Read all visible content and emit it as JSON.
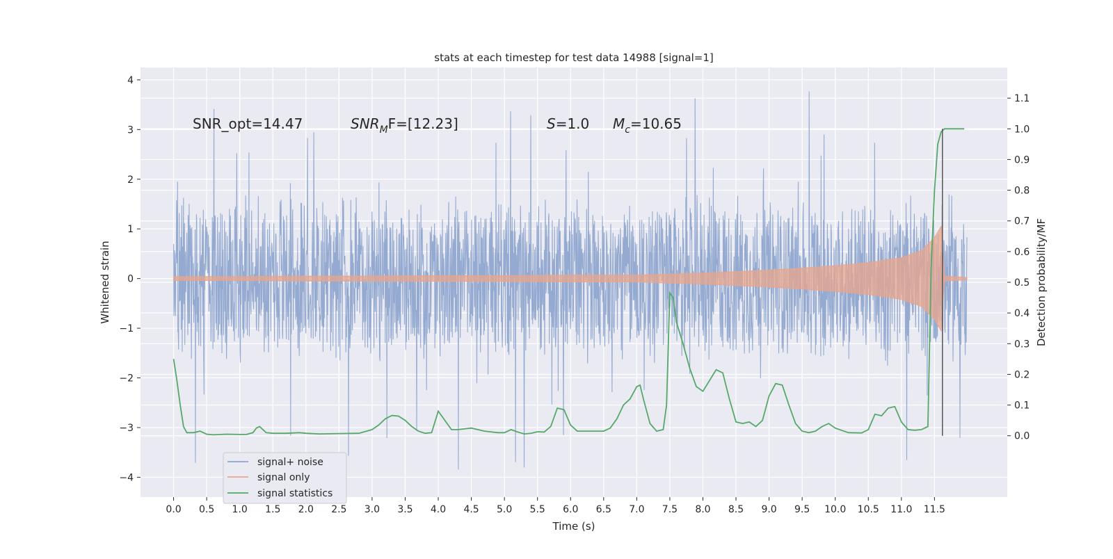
{
  "chart_data": {
    "type": "line",
    "title": "stats at each timestep for test data 14988 [signal=1]",
    "xlabel": "Time (s)",
    "ylabel_left": "Whitened strain",
    "ylabel_right": "Detection probability/MF",
    "xlim": [
      -0.5,
      12.6
    ],
    "ylim_left": [
      -4.4,
      4.25
    ],
    "ylim_right": [
      -0.2,
      1.2
    ],
    "x_ticks": [
      "0.0",
      "0.5",
      "1.0",
      "1.5",
      "2.0",
      "2.5",
      "3.0",
      "3.5",
      "4.0",
      "4.5",
      "5.0",
      "5.5",
      "6.0",
      "6.5",
      "7.0",
      "7.5",
      "8.0",
      "8.5",
      "9.0",
      "9.5",
      "10.0",
      "10.5",
      "11.0",
      "11.5"
    ],
    "x_tick_values": [
      0,
      0.5,
      1,
      1.5,
      2,
      2.5,
      3,
      3.5,
      4,
      4.5,
      5,
      5.5,
      6,
      6.5,
      7,
      7.5,
      8,
      8.5,
      9,
      9.5,
      10,
      10.5,
      11,
      11.5
    ],
    "y_ticks_left": [
      "4",
      "3",
      "2",
      "1",
      "0",
      "−1",
      "−2",
      "−3",
      "−4"
    ],
    "y_tick_values_left": [
      4,
      3,
      2,
      1,
      0,
      -1,
      -2,
      -3,
      -4
    ],
    "y_ticks_right": [
      "1.1",
      "1.0",
      "0.9",
      "0.8",
      "0.7",
      "0.6",
      "0.5",
      "0.4",
      "0.3",
      "0.2",
      "0.1",
      "0.0"
    ],
    "y_tick_values_right": [
      1.1,
      1.0,
      0.9,
      0.8,
      0.7,
      0.6,
      0.5,
      0.4,
      0.3,
      0.2,
      0.1,
      0.0
    ],
    "grid": true,
    "legend_position": "lower-left",
    "annotations": {
      "snr_opt": "SNR_opt=14.47",
      "snr_mf_main": "SNR",
      "snr_mf_sub": "M",
      "snr_mf_tail": "F=[12.23]",
      "s_main": "S",
      "s_tail": "=1.0",
      "mc_main": "M",
      "mc_sub": "c",
      "mc_tail": "=10.65"
    },
    "series": [
      {
        "name": "signal+ noise",
        "color": "#8fa6cf",
        "axis": "left",
        "description_values": {
          "envelope_upper_typical": 1.8,
          "envelope_lower_typical": -1.9,
          "max": 3.9,
          "min": -4.1,
          "t_start": 0.0,
          "t_end": 11.99
        }
      },
      {
        "name": "signal only",
        "color": "#e8a58c",
        "axis": "left",
        "x": [
          0,
          1,
          2,
          3,
          4,
          5,
          6,
          7,
          7.5,
          8,
          8.5,
          9,
          9.5,
          10,
          10.5,
          11,
          11.3,
          11.5,
          11.6,
          11.65,
          11.99
        ],
        "amplitude": [
          0.04,
          0.04,
          0.05,
          0.05,
          0.06,
          0.06,
          0.07,
          0.07,
          0.09,
          0.11,
          0.14,
          0.17,
          0.21,
          0.26,
          0.32,
          0.42,
          0.56,
          0.82,
          1.05,
          0.05,
          0.02
        ]
      },
      {
        "name": "signal statistics",
        "color": "#55a868",
        "axis": "right",
        "x": [
          0.0,
          0.05,
          0.1,
          0.15,
          0.2,
          0.3,
          0.4,
          0.5,
          0.6,
          0.8,
          1.0,
          1.1,
          1.2,
          1.25,
          1.3,
          1.35,
          1.4,
          1.5,
          1.7,
          1.9,
          2.0,
          2.2,
          2.5,
          2.8,
          3.0,
          3.1,
          3.2,
          3.3,
          3.4,
          3.5,
          3.6,
          3.7,
          3.8,
          3.9,
          4.0,
          4.1,
          4.2,
          4.3,
          4.5,
          4.7,
          4.9,
          5.0,
          5.1,
          5.2,
          5.3,
          5.4,
          5.5,
          5.6,
          5.7,
          5.8,
          5.9,
          6.0,
          6.1,
          6.3,
          6.5,
          6.6,
          6.7,
          6.8,
          6.9,
          7.0,
          7.05,
          7.1,
          7.2,
          7.3,
          7.4,
          7.45,
          7.5,
          7.55,
          7.6,
          7.7,
          7.8,
          7.9,
          8.0,
          8.1,
          8.2,
          8.3,
          8.4,
          8.5,
          8.6,
          8.7,
          8.8,
          8.9,
          9.0,
          9.1,
          9.2,
          9.3,
          9.4,
          9.5,
          9.6,
          9.7,
          9.8,
          9.9,
          10.0,
          10.2,
          10.4,
          10.5,
          10.6,
          10.7,
          10.8,
          10.9,
          11.0,
          11.1,
          11.2,
          11.3,
          11.4,
          11.45,
          11.5,
          11.55,
          11.6,
          11.65,
          11.7,
          11.8,
          11.9,
          11.95
        ],
        "y": [
          0.25,
          0.18,
          0.1,
          0.03,
          0.01,
          0.01,
          0.015,
          0.005,
          0.003,
          0.005,
          0.004,
          0.004,
          0.01,
          0.025,
          0.03,
          0.02,
          0.01,
          0.008,
          0.008,
          0.01,
          0.008,
          0.006,
          0.007,
          0.008,
          0.02,
          0.035,
          0.055,
          0.066,
          0.064,
          0.05,
          0.03,
          0.015,
          0.008,
          0.01,
          0.08,
          0.05,
          0.02,
          0.02,
          0.025,
          0.015,
          0.01,
          0.01,
          0.02,
          0.012,
          0.006,
          0.008,
          0.013,
          0.012,
          0.03,
          0.09,
          0.085,
          0.035,
          0.015,
          0.015,
          0.015,
          0.025,
          0.055,
          0.1,
          0.12,
          0.16,
          0.165,
          0.12,
          0.04,
          0.015,
          0.02,
          0.1,
          0.465,
          0.45,
          0.37,
          0.3,
          0.22,
          0.16,
          0.145,
          0.18,
          0.215,
          0.205,
          0.12,
          0.045,
          0.04,
          0.045,
          0.03,
          0.05,
          0.13,
          0.17,
          0.165,
          0.1,
          0.04,
          0.015,
          0.01,
          0.015,
          0.03,
          0.04,
          0.025,
          0.01,
          0.009,
          0.02,
          0.07,
          0.065,
          0.09,
          0.095,
          0.045,
          0.02,
          0.018,
          0.02,
          0.03,
          0.55,
          0.8,
          0.95,
          0.99,
          1.0,
          1.0,
          1.0,
          1.0,
          1.0
        ]
      }
    ],
    "marker_line": {
      "x": 11.62,
      "color": "#555555"
    }
  }
}
